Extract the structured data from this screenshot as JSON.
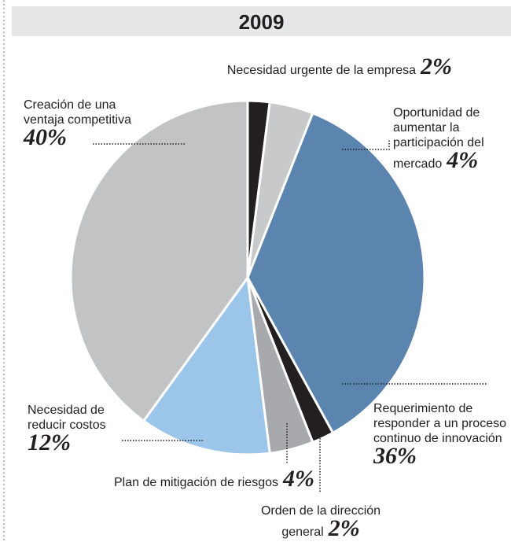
{
  "chart_data": {
    "type": "pie",
    "title": "2009",
    "categories": [
      "Necesidad urgente de la empresa",
      "Oportunidad de aumentar la participación del mercado",
      "Requerimiento de responder a un proceso continuo de innovación",
      "Orden de la dirección general",
      "Plan de mitigación de riesgos",
      "Necesidad de reducir costos",
      "Creación de una ventaja competitiva"
    ],
    "values": [
      2,
      4,
      36,
      2,
      4,
      12,
      40
    ],
    "value_labels": [
      "2%",
      "4%",
      "36%",
      "2%",
      "4%",
      "12%",
      "40%"
    ],
    "colors": [
      "#231f20",
      "#c8c9cb",
      "#5b84ae",
      "#231f20",
      "#a7a9ac",
      "#9cc5ea",
      "#c2c3c5"
    ]
  }
}
